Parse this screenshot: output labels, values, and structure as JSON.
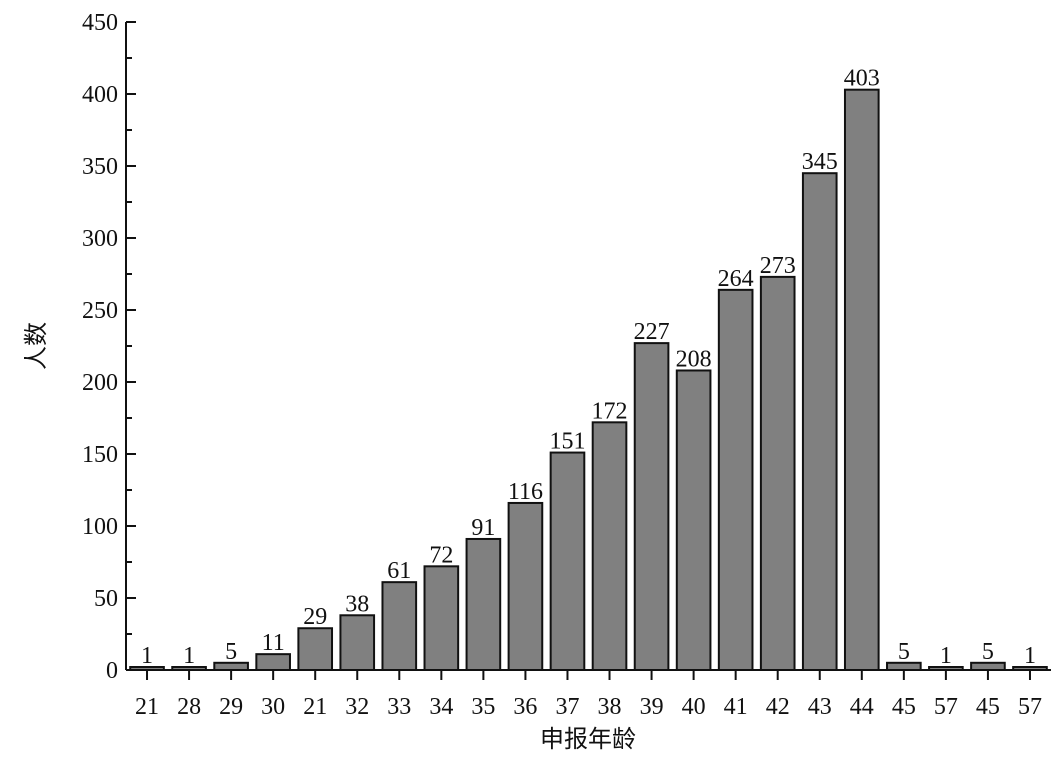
{
  "chart_data": {
    "type": "bar",
    "title": "",
    "xlabel": "申报年龄",
    "ylabel": "人数",
    "ylim": [
      0,
      450
    ],
    "yticks": [
      0,
      50,
      100,
      150,
      200,
      250,
      300,
      350,
      400,
      450
    ],
    "categories": [
      "21",
      "28",
      "29",
      "30",
      "21",
      "32",
      "33",
      "34",
      "35",
      "36",
      "37",
      "38",
      "39",
      "40",
      "41",
      "42",
      "43",
      "44",
      "45",
      "57",
      "45",
      "57"
    ],
    "values": [
      1,
      1,
      5,
      11,
      29,
      38,
      61,
      72,
      91,
      116,
      151,
      172,
      227,
      208,
      264,
      273,
      345,
      403,
      5,
      1,
      5,
      1
    ],
    "grid": false,
    "legend": "none",
    "colors": {
      "bar": "#808080",
      "outline": "#111111"
    }
  }
}
